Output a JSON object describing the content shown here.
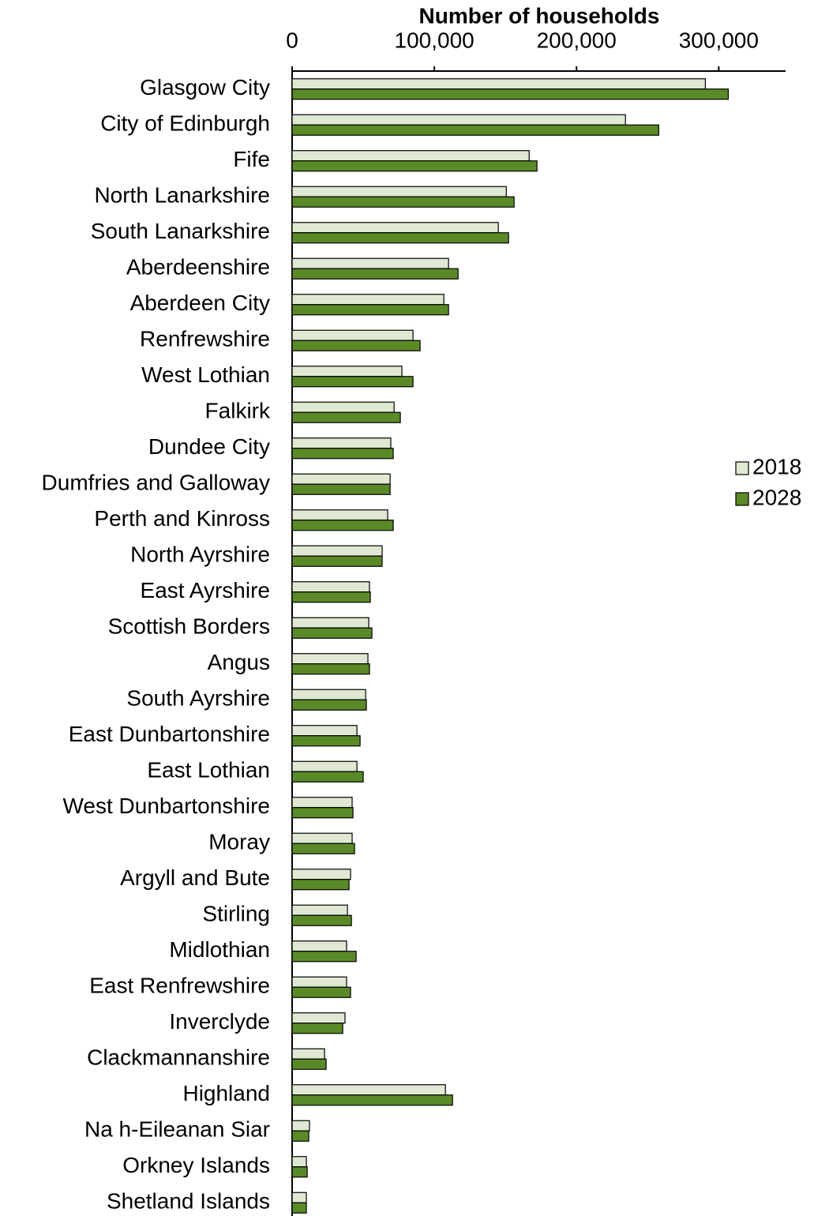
{
  "chart_data": {
    "type": "hbar",
    "x_label": "Number of households",
    "categories": [
      "Glasgow City",
      "City of Edinburgh",
      "Fife",
      "North Lanarkshire",
      "South Lanarkshire",
      "Aberdeenshire",
      "Aberdeen City",
      "Renfrewshire",
      "West Lothian",
      "Falkirk",
      "Dundee City",
      "Dumfries and Galloway",
      "Perth and Kinross",
      "North Ayrshire",
      "East Ayrshire",
      "Scottish Borders",
      "Angus",
      "South Ayrshire",
      "East Dunbartonshire",
      "East Lothian",
      "West Dunbartonshire",
      "Moray",
      "Argyll and Bute",
      "Stirling",
      "Midlothian",
      "East Renfrewshire",
      "Inverclyde",
      "Clackmannanshire",
      "Highland",
      "Na h-Eileanan Siar",
      "Orkney Islands",
      "Shetland Islands"
    ],
    "series": [
      {
        "name": "2018",
        "color": "#dfe8d2",
        "values": [
          290600,
          234400,
          166700,
          150600,
          145000,
          110000,
          106700,
          85000,
          77200,
          71700,
          69400,
          68900,
          67200,
          63300,
          54400,
          53900,
          53300,
          51700,
          45600,
          45600,
          42200,
          42200,
          41100,
          38900,
          38300,
          38300,
          37200,
          22800,
          107800,
          12200,
          10000,
          10000
        ]
      },
      {
        "name": "2028",
        "color": "#5a8a28",
        "values": [
          306700,
          257800,
          172200,
          156100,
          152200,
          116700,
          110000,
          90000,
          85000,
          76100,
          71100,
          68900,
          71100,
          63300,
          55000,
          56100,
          54400,
          52200,
          47800,
          50000,
          42800,
          43900,
          40000,
          41700,
          45000,
          41100,
          35600,
          23900,
          112800,
          11700,
          10600,
          10000
        ]
      }
    ],
    "xlim": [
      0,
      347000
    ],
    "xticks": [
      0,
      {
        "value": 100000,
        "label": "100,000"
      },
      {
        "value": 200000,
        "label": "200,000"
      },
      {
        "value": 300000,
        "label": "300,000"
      }
    ],
    "legend": "right"
  }
}
